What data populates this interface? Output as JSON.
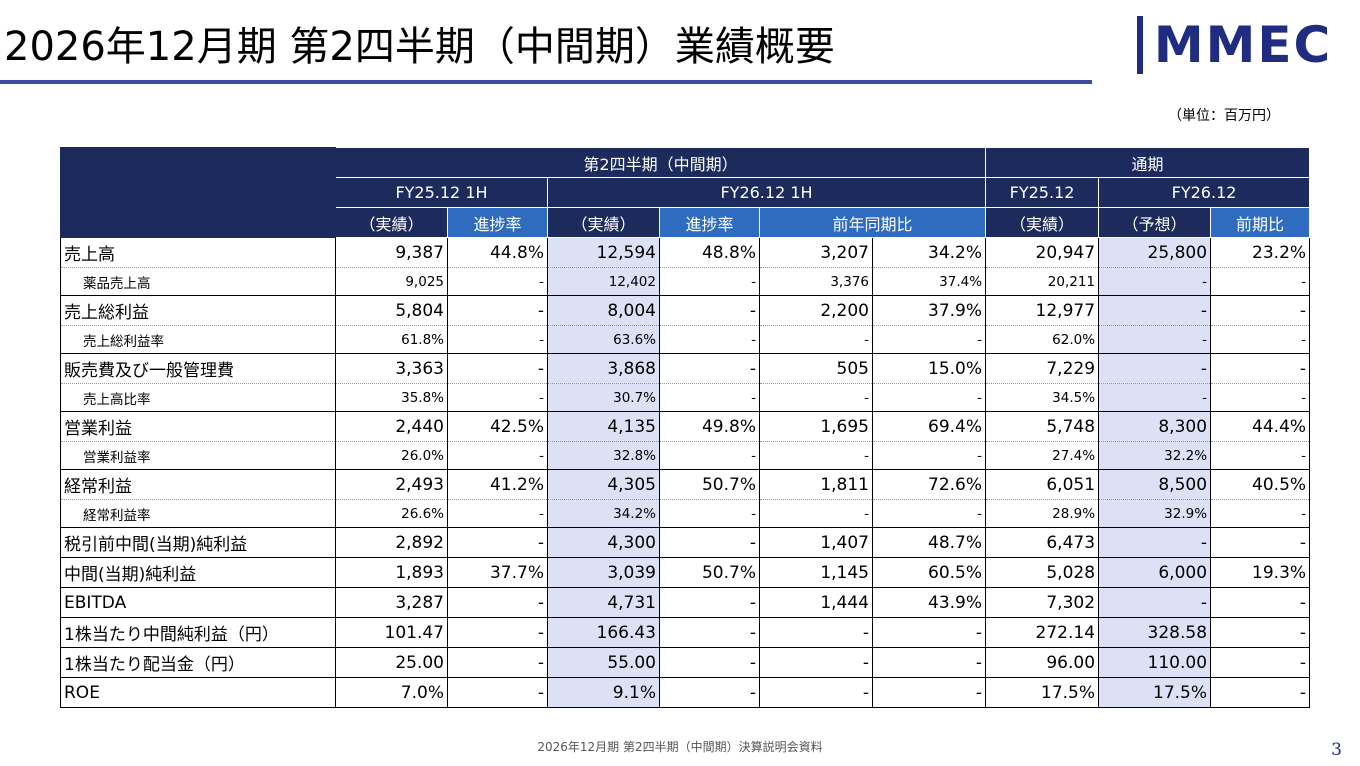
{
  "header": {
    "title": "2026年12月期 第2四半期（中間期）業績概要",
    "logo": "MMEC",
    "unit": "（単位：百万円）"
  },
  "table": {
    "group_headers": [
      "第2四半期（中間期）",
      "通期"
    ],
    "period_headers": [
      "FY25.12 1H",
      "FY26.12 1H",
      "FY25.12",
      "FY26.12"
    ],
    "column_headers": [
      "（実績）",
      "進捗率",
      "（実績）",
      "進捗率",
      "前年同期比",
      "（実績）",
      "（予想）",
      "前期比"
    ],
    "rows": [
      {
        "label": "売上高",
        "cells": [
          "9,387",
          "44.8%",
          "12,594",
          "48.8%",
          "3,207",
          "34.2%",
          "20,947",
          "25,800",
          "23.2%"
        ]
      },
      {
        "label": "薬品売上高",
        "cells": [
          "9,025",
          "-",
          "12,402",
          "-",
          "3,376",
          "37.4%",
          "20,211",
          "-",
          "-"
        ]
      },
      {
        "label": "売上総利益",
        "cells": [
          "5,804",
          "-",
          "8,004",
          "-",
          "2,200",
          "37.9%",
          "12,977",
          "-",
          "-"
        ]
      },
      {
        "label": "売上総利益率",
        "cells": [
          "61.8%",
          "-",
          "63.6%",
          "-",
          "-",
          "-",
          "62.0%",
          "-",
          "-"
        ]
      },
      {
        "label": "販売費及び一般管理費",
        "cells": [
          "3,363",
          "-",
          "3,868",
          "-",
          "505",
          "15.0%",
          "7,229",
          "-",
          "-"
        ]
      },
      {
        "label": "売上高比率",
        "cells": [
          "35.8%",
          "-",
          "30.7%",
          "-",
          "-",
          "-",
          "34.5%",
          "-",
          "-"
        ]
      },
      {
        "label": "営業利益",
        "cells": [
          "2,440",
          "42.5%",
          "4,135",
          "49.8%",
          "1,695",
          "69.4%",
          "5,748",
          "8,300",
          "44.4%"
        ]
      },
      {
        "label": "営業利益率",
        "cells": [
          "26.0%",
          "-",
          "32.8%",
          "-",
          "-",
          "-",
          "27.4%",
          "32.2%",
          "-"
        ]
      },
      {
        "label": "経常利益",
        "cells": [
          "2,493",
          "41.2%",
          "4,305",
          "50.7%",
          "1,811",
          "72.6%",
          "6,051",
          "8,500",
          "40.5%"
        ]
      },
      {
        "label": "経常利益率",
        "cells": [
          "26.6%",
          "-",
          "34.2%",
          "-",
          "-",
          "-",
          "28.9%",
          "32.9%",
          "-"
        ]
      },
      {
        "label": "税引前中間(当期)純利益",
        "cells": [
          "2,892",
          "-",
          "4,300",
          "-",
          "1,407",
          "48.7%",
          "6,473",
          "-",
          "-"
        ]
      },
      {
        "label": "中間(当期)純利益",
        "cells": [
          "1,893",
          "37.7%",
          "3,039",
          "50.7%",
          "1,145",
          "60.5%",
          "5,028",
          "6,000",
          "19.3%"
        ]
      },
      {
        "label": "EBITDA",
        "cells": [
          "3,287",
          "-",
          "4,731",
          "-",
          "1,444",
          "43.9%",
          "7,302",
          "-",
          "-"
        ]
      },
      {
        "label": "1株当たり中間純利益（円）",
        "cells": [
          "101.47",
          "-",
          "166.43",
          "-",
          "-",
          "-",
          "272.14",
          "328.58",
          "-"
        ]
      },
      {
        "label": "1株当たり配当金（円）",
        "cells": [
          "25.00",
          "-",
          "55.00",
          "-",
          "-",
          "-",
          "96.00",
          "110.00",
          "-"
        ]
      },
      {
        "label": "ROE",
        "cells": [
          "7.0%",
          "-",
          "9.1%",
          "-",
          "-",
          "-",
          "17.5%",
          "17.5%",
          "-"
        ]
      }
    ]
  },
  "footer": {
    "text": "2026年12月期 第2四半期（中間期）決算説明会資料",
    "page": "3"
  }
}
